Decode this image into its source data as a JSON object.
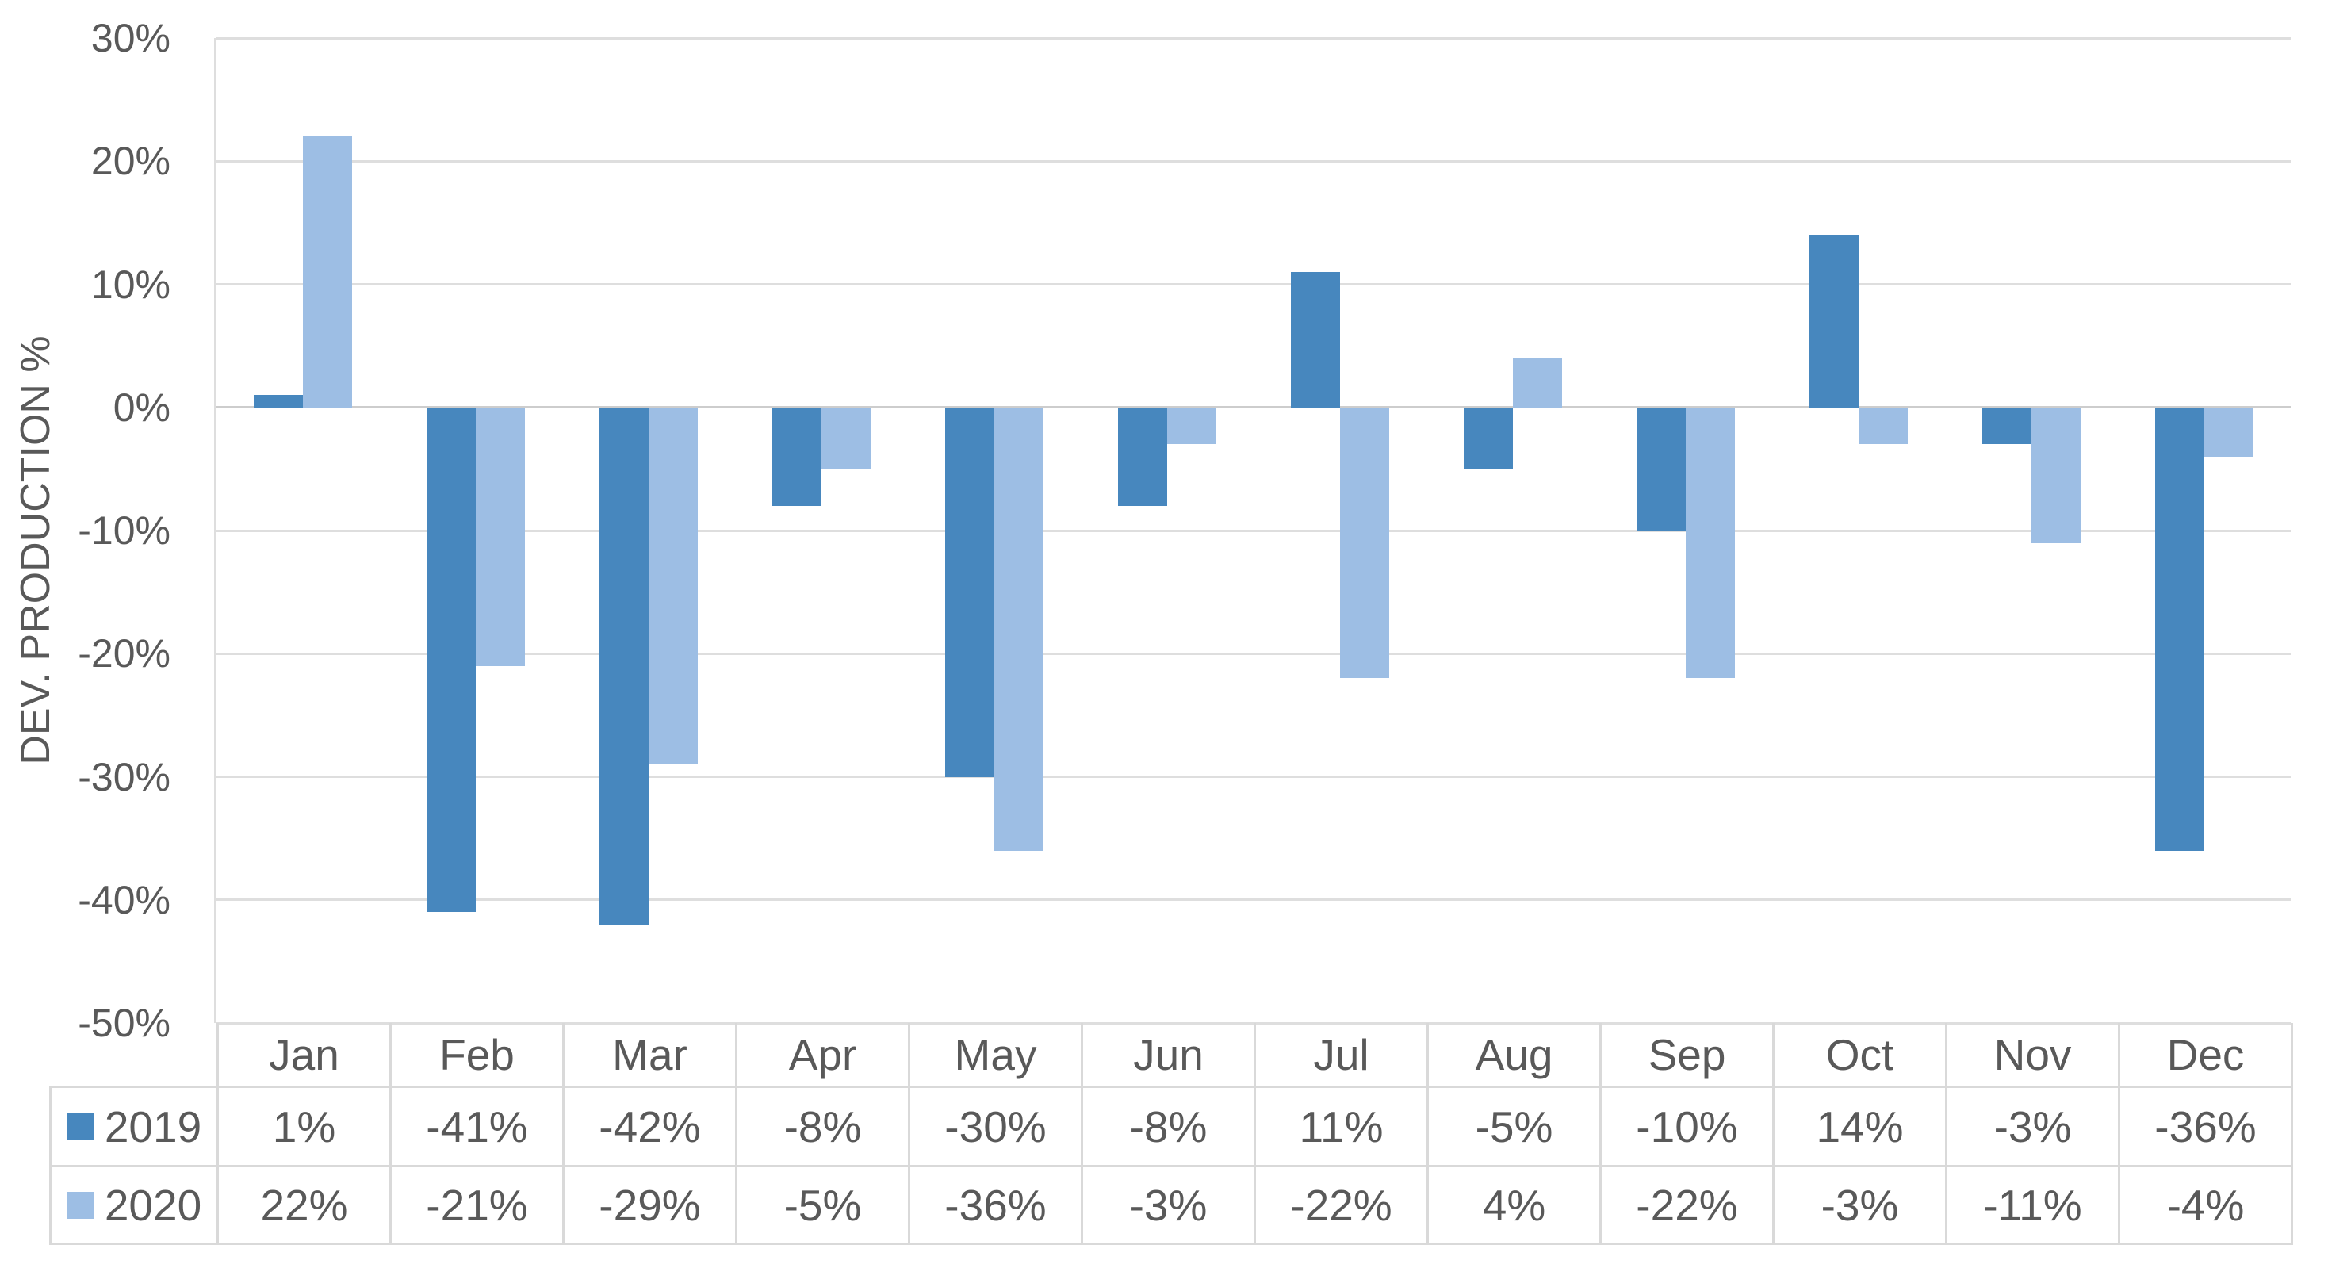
{
  "chart_data": {
    "type": "bar",
    "title": "",
    "xlabel": "",
    "ylabel": "DEV. PRODUCTION %",
    "categories": [
      "Jan",
      "Feb",
      "Mar",
      "Apr",
      "May",
      "Jun",
      "Jul",
      "Aug",
      "Sep",
      "Oct",
      "Nov",
      "Dec"
    ],
    "series": [
      {
        "name": "2019",
        "color": "#4787BE",
        "values": [
          1,
          -41,
          -42,
          -8,
          -30,
          -8,
          11,
          -5,
          -10,
          14,
          -3,
          -36
        ]
      },
      {
        "name": "2020",
        "color": "#9DBEE4",
        "values": [
          22,
          -21,
          -29,
          -5,
          -36,
          -3,
          -22,
          4,
          -22,
          -3,
          -11,
          -4
        ]
      }
    ],
    "display_values": [
      [
        "1%",
        "-41%",
        "-42%",
        "-8%",
        "-30%",
        "-8%",
        "11%",
        "-5%",
        "-10%",
        "14%",
        "-3%",
        "-36%"
      ],
      [
        "22%",
        "-21%",
        "-29%",
        "-5%",
        "-36%",
        "-3%",
        "-22%",
        "4%",
        "-22%",
        "-3%",
        "-11%",
        "-4%"
      ]
    ],
    "ylim": [
      -50,
      30
    ],
    "y_tick_step": 10,
    "y_tick_labels": [
      "30%",
      "20%",
      "10%",
      "0%",
      "-10%",
      "-20%",
      "-30%",
      "-40%",
      "-50%"
    ],
    "value_suffix": "%",
    "grid": true,
    "legend_position": "data-table-left-column",
    "data_table_shown": true
  },
  "colors": {
    "background": "#FFFFFF",
    "gridline": "#DEDEDE",
    "zero_line": "#CDCDCD",
    "table_border": "#D9D9D9",
    "text": "#595959"
  }
}
